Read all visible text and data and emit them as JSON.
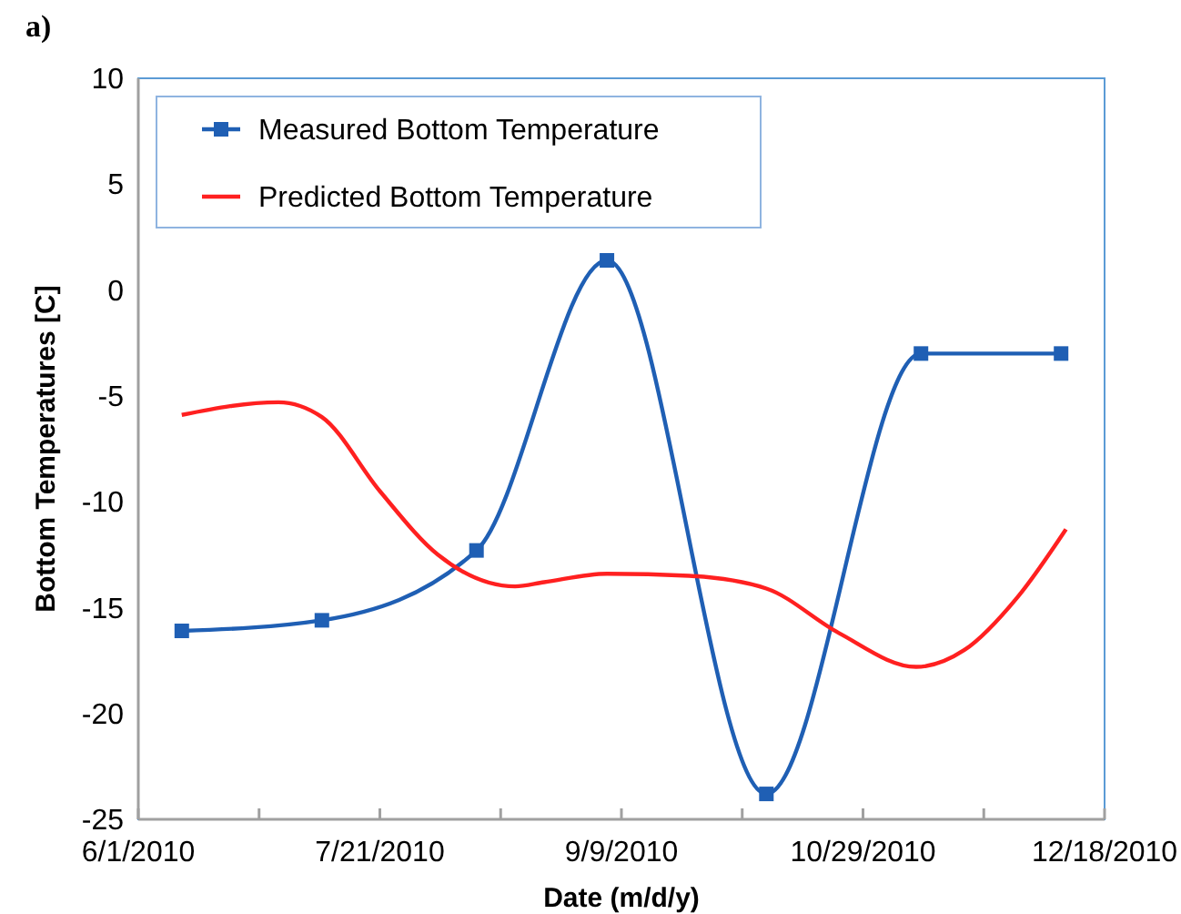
{
  "chart_data": {
    "type": "line",
    "title": "a)",
    "xlabel": "Date (m/d/y)",
    "ylabel": "Bottom Temperatures [C]",
    "xlim": [
      "2010-06-01",
      "2010-12-18"
    ],
    "xticks": [
      {
        "value": "2010-06-01",
        "label": "6/1/2010"
      },
      {
        "value": "2010-06-26",
        "label": null
      },
      {
        "value": "2010-07-21",
        "label": "7/21/2010"
      },
      {
        "value": "2010-08-15",
        "label": null
      },
      {
        "value": "2010-09-09",
        "label": "9/9/2010"
      },
      {
        "value": "2010-10-04",
        "label": null
      },
      {
        "value": "2010-10-29",
        "label": "10/29/2010"
      },
      {
        "value": "2010-11-23",
        "label": null
      },
      {
        "value": "2010-12-18",
        "label": "12/18/2010"
      }
    ],
    "ylim": [
      -25,
      10
    ],
    "yticks": [
      -25,
      -20,
      -15,
      -10,
      -5,
      0,
      5,
      10
    ],
    "grid": false,
    "legend": "top left",
    "series": [
      {
        "name": "Measured Bottom Temperature",
        "color": "#1f5fb4",
        "marker": "square",
        "x": [
          "2010-06-10",
          "2010-07-09",
          "2010-08-10",
          "2010-09-06",
          "2010-10-09",
          "2010-11-10",
          "2010-12-09"
        ],
        "values": [
          -16.1,
          -15.6,
          -12.3,
          1.4,
          -23.8,
          -3.0,
          -3.0
        ]
      },
      {
        "name": "Predicted Bottom Temperature",
        "color": "#ff2020",
        "marker": "none",
        "x": [
          "2010-06-10",
          "2010-06-30",
          "2010-07-09",
          "2010-07-21",
          "2010-08-02",
          "2010-08-18",
          "2010-08-24",
          "2010-09-06",
          "2010-09-23",
          "2010-10-09",
          "2010-10-24",
          "2010-11-09",
          "2010-11-19",
          "2010-11-30",
          "2010-12-10"
        ],
        "values": [
          -5.9,
          -5.3,
          -6.0,
          -9.5,
          -12.5,
          -14.0,
          -13.8,
          -13.4,
          -13.5,
          -14.1,
          -16.2,
          -17.8,
          -17.0,
          -14.5,
          -11.3
        ]
      }
    ]
  }
}
